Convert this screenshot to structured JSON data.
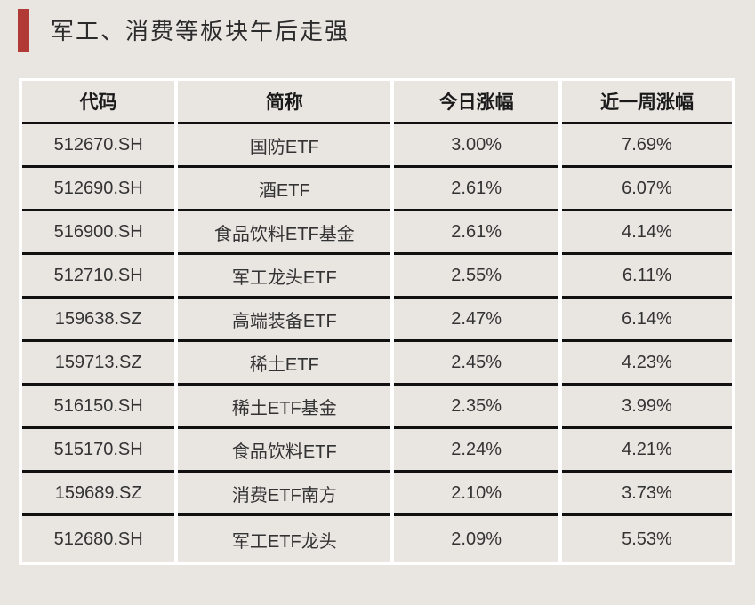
{
  "page": {
    "title": "军工、消费等板块午后走强"
  },
  "colors": {
    "background": "#e9e6e2",
    "accent_red": "#b23a36",
    "row_divider": "#111111",
    "table_gutter": "#ffffff",
    "header_text": "#1a1a1a",
    "cell_text": "#333333"
  },
  "table": {
    "columns": [
      "代码",
      "简称",
      "今日涨幅",
      "近一周涨幅"
    ],
    "rows": [
      {
        "code": "512670.SH",
        "name": "国防ETF",
        "today": "3.00%",
        "week": "7.69%"
      },
      {
        "code": "512690.SH",
        "name": "酒ETF",
        "today": "2.61%",
        "week": "6.07%"
      },
      {
        "code": "516900.SH",
        "name": "食品饮料ETF基金",
        "today": "2.61%",
        "week": "4.14%"
      },
      {
        "code": "512710.SH",
        "name": "军工龙头ETF",
        "today": "2.55%",
        "week": "6.11%"
      },
      {
        "code": "159638.SZ",
        "name": "高端装备ETF",
        "today": "2.47%",
        "week": "6.14%"
      },
      {
        "code": "159713.SZ",
        "name": "稀土ETF",
        "today": "2.45%",
        "week": "4.23%"
      },
      {
        "code": "516150.SH",
        "name": "稀土ETF基金",
        "today": "2.35%",
        "week": "3.99%"
      },
      {
        "code": "515170.SH",
        "name": "食品饮料ETF",
        "today": "2.24%",
        "week": "4.21%"
      },
      {
        "code": "159689.SZ",
        "name": "消费ETF南方",
        "today": "2.10%",
        "week": "3.73%"
      },
      {
        "code": "512680.SH",
        "name": "军工ETF龙头",
        "today": "2.09%",
        "week": "5.53%"
      }
    ]
  },
  "chart_data": {
    "type": "table",
    "title": "军工、消费等板块午后走强",
    "columns": [
      "代码",
      "简称",
      "今日涨幅",
      "近一周涨幅"
    ],
    "rows": [
      [
        "512670.SH",
        "国防ETF",
        "3.00%",
        "7.69%"
      ],
      [
        "512690.SH",
        "酒ETF",
        "2.61%",
        "6.07%"
      ],
      [
        "516900.SH",
        "食品饮料ETF基金",
        "2.61%",
        "4.14%"
      ],
      [
        "512710.SH",
        "军工龙头ETF",
        "2.55%",
        "6.11%"
      ],
      [
        "159638.SZ",
        "高端装备ETF",
        "2.47%",
        "6.14%"
      ],
      [
        "159713.SZ",
        "稀土ETF",
        "2.45%",
        "4.23%"
      ],
      [
        "516150.SH",
        "稀土ETF基金",
        "2.35%",
        "3.99%"
      ],
      [
        "515170.SH",
        "食品饮料ETF",
        "2.24%",
        "4.21%"
      ],
      [
        "159689.SZ",
        "消费ETF南方",
        "2.10%",
        "3.73%"
      ],
      [
        "512680.SH",
        "军工ETF龙头",
        "2.09%",
        "5.53%"
      ]
    ],
    "today_change_values": [
      3.0,
      2.61,
      2.61,
      2.55,
      2.47,
      2.45,
      2.35,
      2.24,
      2.1,
      2.09
    ],
    "week_change_values": [
      7.69,
      6.07,
      4.14,
      6.11,
      6.14,
      4.23,
      3.99,
      4.21,
      3.73,
      5.53
    ]
  }
}
